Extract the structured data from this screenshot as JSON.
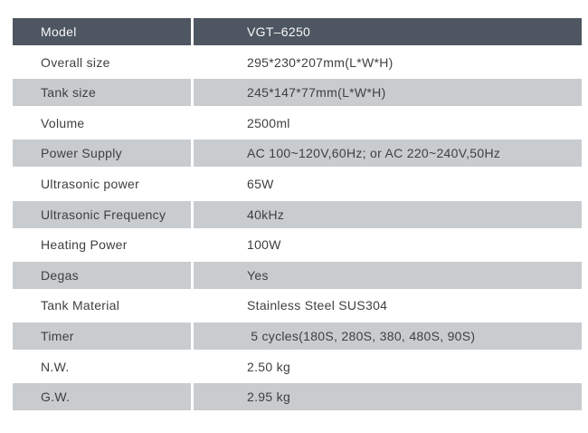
{
  "table": {
    "header": {
      "label": "Model",
      "value": "VGT–6250"
    },
    "rows": [
      {
        "label": "Overall size",
        "value": "295*230*207mm(L*W*H)"
      },
      {
        "label": "Tank size",
        "value": "245*147*77mm(L*W*H)"
      },
      {
        "label": "Volume",
        "value": "2500ml"
      },
      {
        "label": "Power Supply",
        "value": "AC 100~120V,60Hz; or AC 220~240V,50Hz"
      },
      {
        "label": "Ultrasonic power",
        "value": "65W"
      },
      {
        "label": "Ultrasonic Frequency",
        "value": "40kHz"
      },
      {
        "label": "Heating Power",
        "value": "100W"
      },
      {
        "label": "Degas",
        "value": "Yes"
      },
      {
        "label": "Tank Material",
        "value": "Stainless Steel SUS304"
      },
      {
        "label": "Timer",
        "value": " 5 cycles(180S, 280S, 380, 480S, 90S)"
      },
      {
        "label": "N.W.",
        "value": "2.50 kg"
      },
      {
        "label": "G.W.",
        "value": "2.95 kg"
      }
    ],
    "colors": {
      "header_bg": "#4e5661",
      "header_text": "#f7f8f9",
      "alt_row_bg": "#c9ccce",
      "row_text": "#3d3f42",
      "divider": "#ffffff"
    }
  },
  "chart_data": {
    "type": "table",
    "title": "",
    "columns": [
      "Model",
      "VGT–6250"
    ],
    "rows": [
      [
        "Overall size",
        "295*230*207mm(L*W*H)"
      ],
      [
        "Tank size",
        "245*147*77mm(L*W*H)"
      ],
      [
        "Volume",
        "2500ml"
      ],
      [
        "Power Supply",
        "AC 100~120V,60Hz; or AC 220~240V,50Hz"
      ],
      [
        "Ultrasonic power",
        "65W"
      ],
      [
        "Ultrasonic Frequency",
        "40kHz"
      ],
      [
        "Heating Power",
        "100W"
      ],
      [
        "Degas",
        "Yes"
      ],
      [
        "Tank Material",
        "Stainless Steel SUS304"
      ],
      [
        "Timer",
        "5 cycles(180S, 280S, 380, 480S, 90S)"
      ],
      [
        "N.W.",
        "2.50 kg"
      ],
      [
        "G.W.",
        "2.95 kg"
      ]
    ]
  }
}
